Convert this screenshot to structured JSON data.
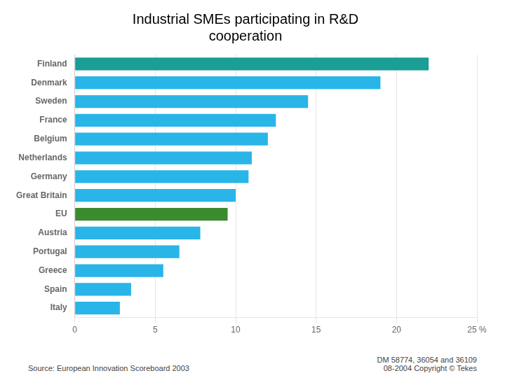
{
  "chart_data": {
    "type": "bar",
    "orientation": "horizontal",
    "title": "Industrial SMEs participating in R&D\ncooperation",
    "categories": [
      "Finland",
      "Denmark",
      "Sweden",
      "France",
      "Belgium",
      "Netherlands",
      "Germany",
      "Great Britain",
      "EU",
      "Austria",
      "Portugal",
      "Greece",
      "Spain",
      "Italy"
    ],
    "values": [
      22,
      19,
      14.5,
      12.5,
      12,
      11,
      10.8,
      10,
      9.5,
      7.8,
      6.5,
      5.5,
      3.5,
      2.8
    ],
    "colors": [
      "#1a9e96",
      "#29b5e8",
      "#29b5e8",
      "#29b5e8",
      "#29b5e8",
      "#29b5e8",
      "#29b5e8",
      "#29b5e8",
      "#3a8c2f",
      "#29b5e8",
      "#29b5e8",
      "#29b5e8",
      "#29b5e8",
      "#29b5e8"
    ],
    "xlim": [
      0,
      25
    ],
    "xticks": [
      0,
      5,
      10,
      15,
      20,
      {
        "value": 25,
        "label": "25 %"
      }
    ],
    "grid": true,
    "annotations": [
      "Source: European Innovation Scoreboard 2003",
      "DM 58774, 36054 and 36109\n08-2004 Copyright © Tekes"
    ]
  }
}
